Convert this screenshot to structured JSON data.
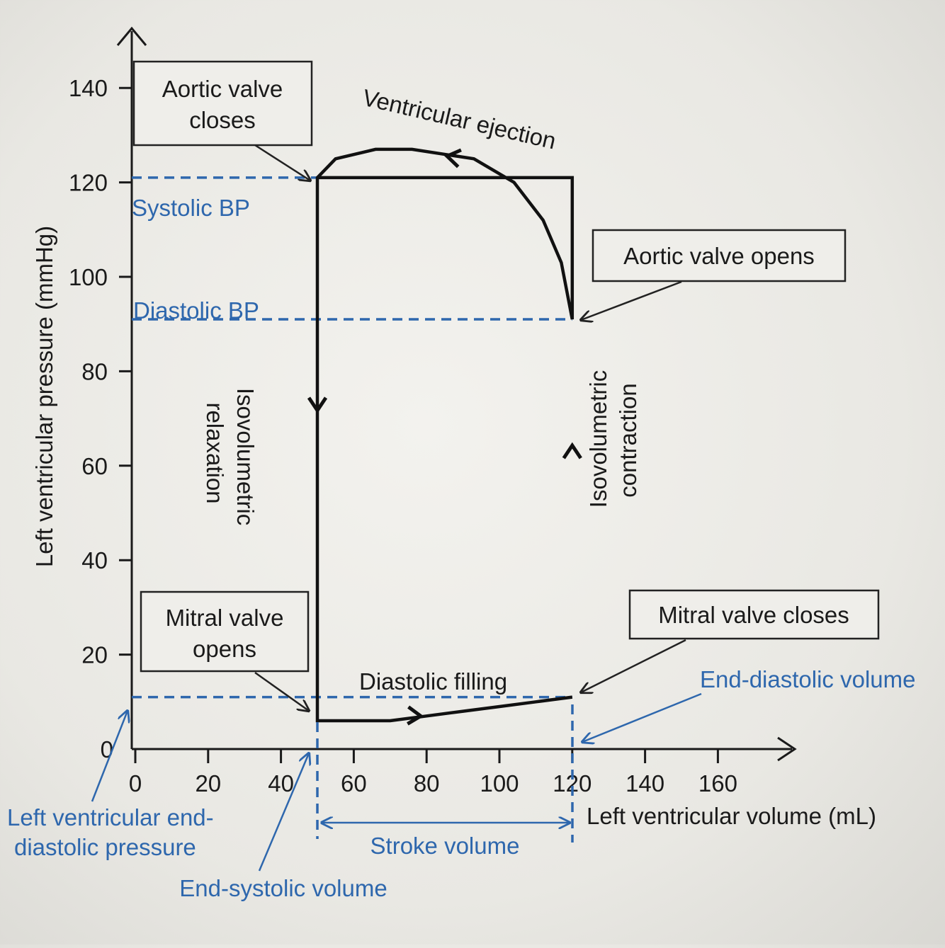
{
  "chart_data": {
    "type": "line",
    "xlabel": "Left ventricular volume (mL)",
    "ylabel": "Left ventricular pressure (mmHg)",
    "xlim": [
      0,
      180
    ],
    "ylim": [
      0,
      150
    ],
    "x_ticks": [
      "0",
      "20",
      "40",
      "60",
      "80",
      "100",
      "120",
      "140",
      "160"
    ],
    "y_ticks": [
      "0",
      "20",
      "40",
      "60",
      "80",
      "100",
      "120",
      "140"
    ],
    "series": [
      {
        "x": [
          50,
          120,
          120,
          117,
          112,
          104,
          93,
          76,
          66,
          55,
          50,
          50,
          50,
          52,
          60,
          70,
          80,
          90,
          100,
          110,
          120
        ],
        "y": [
          121,
          121,
          91,
          103,
          112,
          120,
          125,
          127,
          127,
          125,
          121,
          91,
          6,
          6,
          6,
          6,
          7,
          8,
          9,
          10,
          11
        ]
      }
    ],
    "reference_lines": {
      "systolic_bp": 121,
      "diastolic_bp": 91,
      "lv_end_diastolic_pressure": 11,
      "end_systolic_volume": 50,
      "end_diastolic_volume": 120
    },
    "grid": false,
    "legend": "none"
  },
  "labels": {
    "systolic_bp": "Systolic BP",
    "diastolic_bp": "Diastolic BP",
    "ventricular_ejection": "Ventricular ejection",
    "iso_relax_line1": "Isovolumetric",
    "iso_relax_line2": "relaxation",
    "iso_contr_line1": "Isovolumetric",
    "iso_contr_line2": "contraction",
    "diastolic_filling": "Diastolic filling",
    "stroke_volume": "Stroke volume",
    "end_diastolic_volume": "End-diastolic volume",
    "end_systolic_volume": "End-systolic volume",
    "lvedp_line1": "Left ventricular end-",
    "lvedp_line2": "diastolic pressure"
  },
  "boxes": {
    "aortic_closes_line1": "Aortic valve",
    "aortic_closes_line2": "closes",
    "aortic_opens": "Aortic valve opens",
    "mitral_opens_line1": "Mitral valve",
    "mitral_opens_line2": "opens",
    "mitral_closes": "Mitral valve closes"
  },
  "colors": {
    "annotation_blue": "#2e67ad",
    "line_black": "#111111"
  }
}
